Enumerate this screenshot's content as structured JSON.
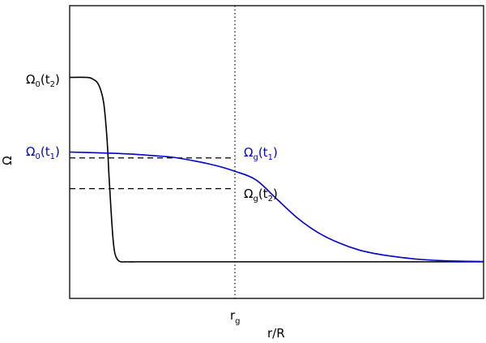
{
  "chart_data": {
    "type": "line",
    "xlabel": "r/R",
    "ylabel": "Ω",
    "xlim": [
      0,
      1
    ],
    "ylim": [
      0,
      1
    ],
    "axes_ticks": "none",
    "grid": false,
    "colors": {
      "black": "#000000",
      "blue": "#0000cc"
    },
    "vertical_marker": {
      "x": 0.4,
      "label_main": "r",
      "label_sub": "g",
      "style": "dotted"
    },
    "series": [
      {
        "color": "#000000",
        "x": [
          0,
          0.04,
          0.055,
          0.07,
          0.082,
          0.09,
          0.095,
          0.1,
          0.105,
          0.11,
          0.12,
          0.14,
          0.16,
          0.2,
          0.4,
          0.6,
          0.8,
          1.0
        ],
        "y": [
          0.755,
          0.755,
          0.75,
          0.73,
          0.67,
          0.55,
          0.42,
          0.3,
          0.2,
          0.15,
          0.127,
          0.125,
          0.125,
          0.125,
          0.125,
          0.125,
          0.125,
          0.125
        ]
      },
      {
        "color": "#0000cc",
        "x": [
          0,
          0.05,
          0.1,
          0.15,
          0.2,
          0.25,
          0.3,
          0.35,
          0.4,
          0.45,
          0.5,
          0.55,
          0.6,
          0.65,
          0.7,
          0.75,
          0.8,
          0.85,
          0.9,
          0.95,
          1.0
        ],
        "y": [
          0.5,
          0.498,
          0.496,
          0.493,
          0.488,
          0.482,
          0.47,
          0.455,
          0.434,
          0.405,
          0.34,
          0.275,
          0.225,
          0.19,
          0.165,
          0.15,
          0.14,
          0.133,
          0.129,
          0.127,
          0.126
        ]
      }
    ],
    "reference_lines": [
      {
        "color": "#000000",
        "style": "dashed",
        "x": [
          0,
          0.4
        ],
        "y": 0.48
      },
      {
        "color": "#000000",
        "style": "dashed",
        "x": [
          0,
          0.4
        ],
        "y": 0.375
      }
    ],
    "annotations": [
      {
        "main": "Ω",
        "sub0": "0",
        "mid": "(t",
        "sub1": "2",
        "end": ")",
        "color": "#000000"
      },
      {
        "main": "Ω",
        "sub0": "0",
        "mid": "(t",
        "sub1": "1",
        "end": ")",
        "color": "#0000cc"
      },
      {
        "main": "Ω",
        "sub0": "g",
        "mid": "(t",
        "sub1": "1",
        "end": ")",
        "color": "#0000cc"
      },
      {
        "main": "Ω",
        "sub0": "g",
        "mid": "(t",
        "sub1": "2",
        "end": ")",
        "color": "#000000"
      }
    ]
  }
}
